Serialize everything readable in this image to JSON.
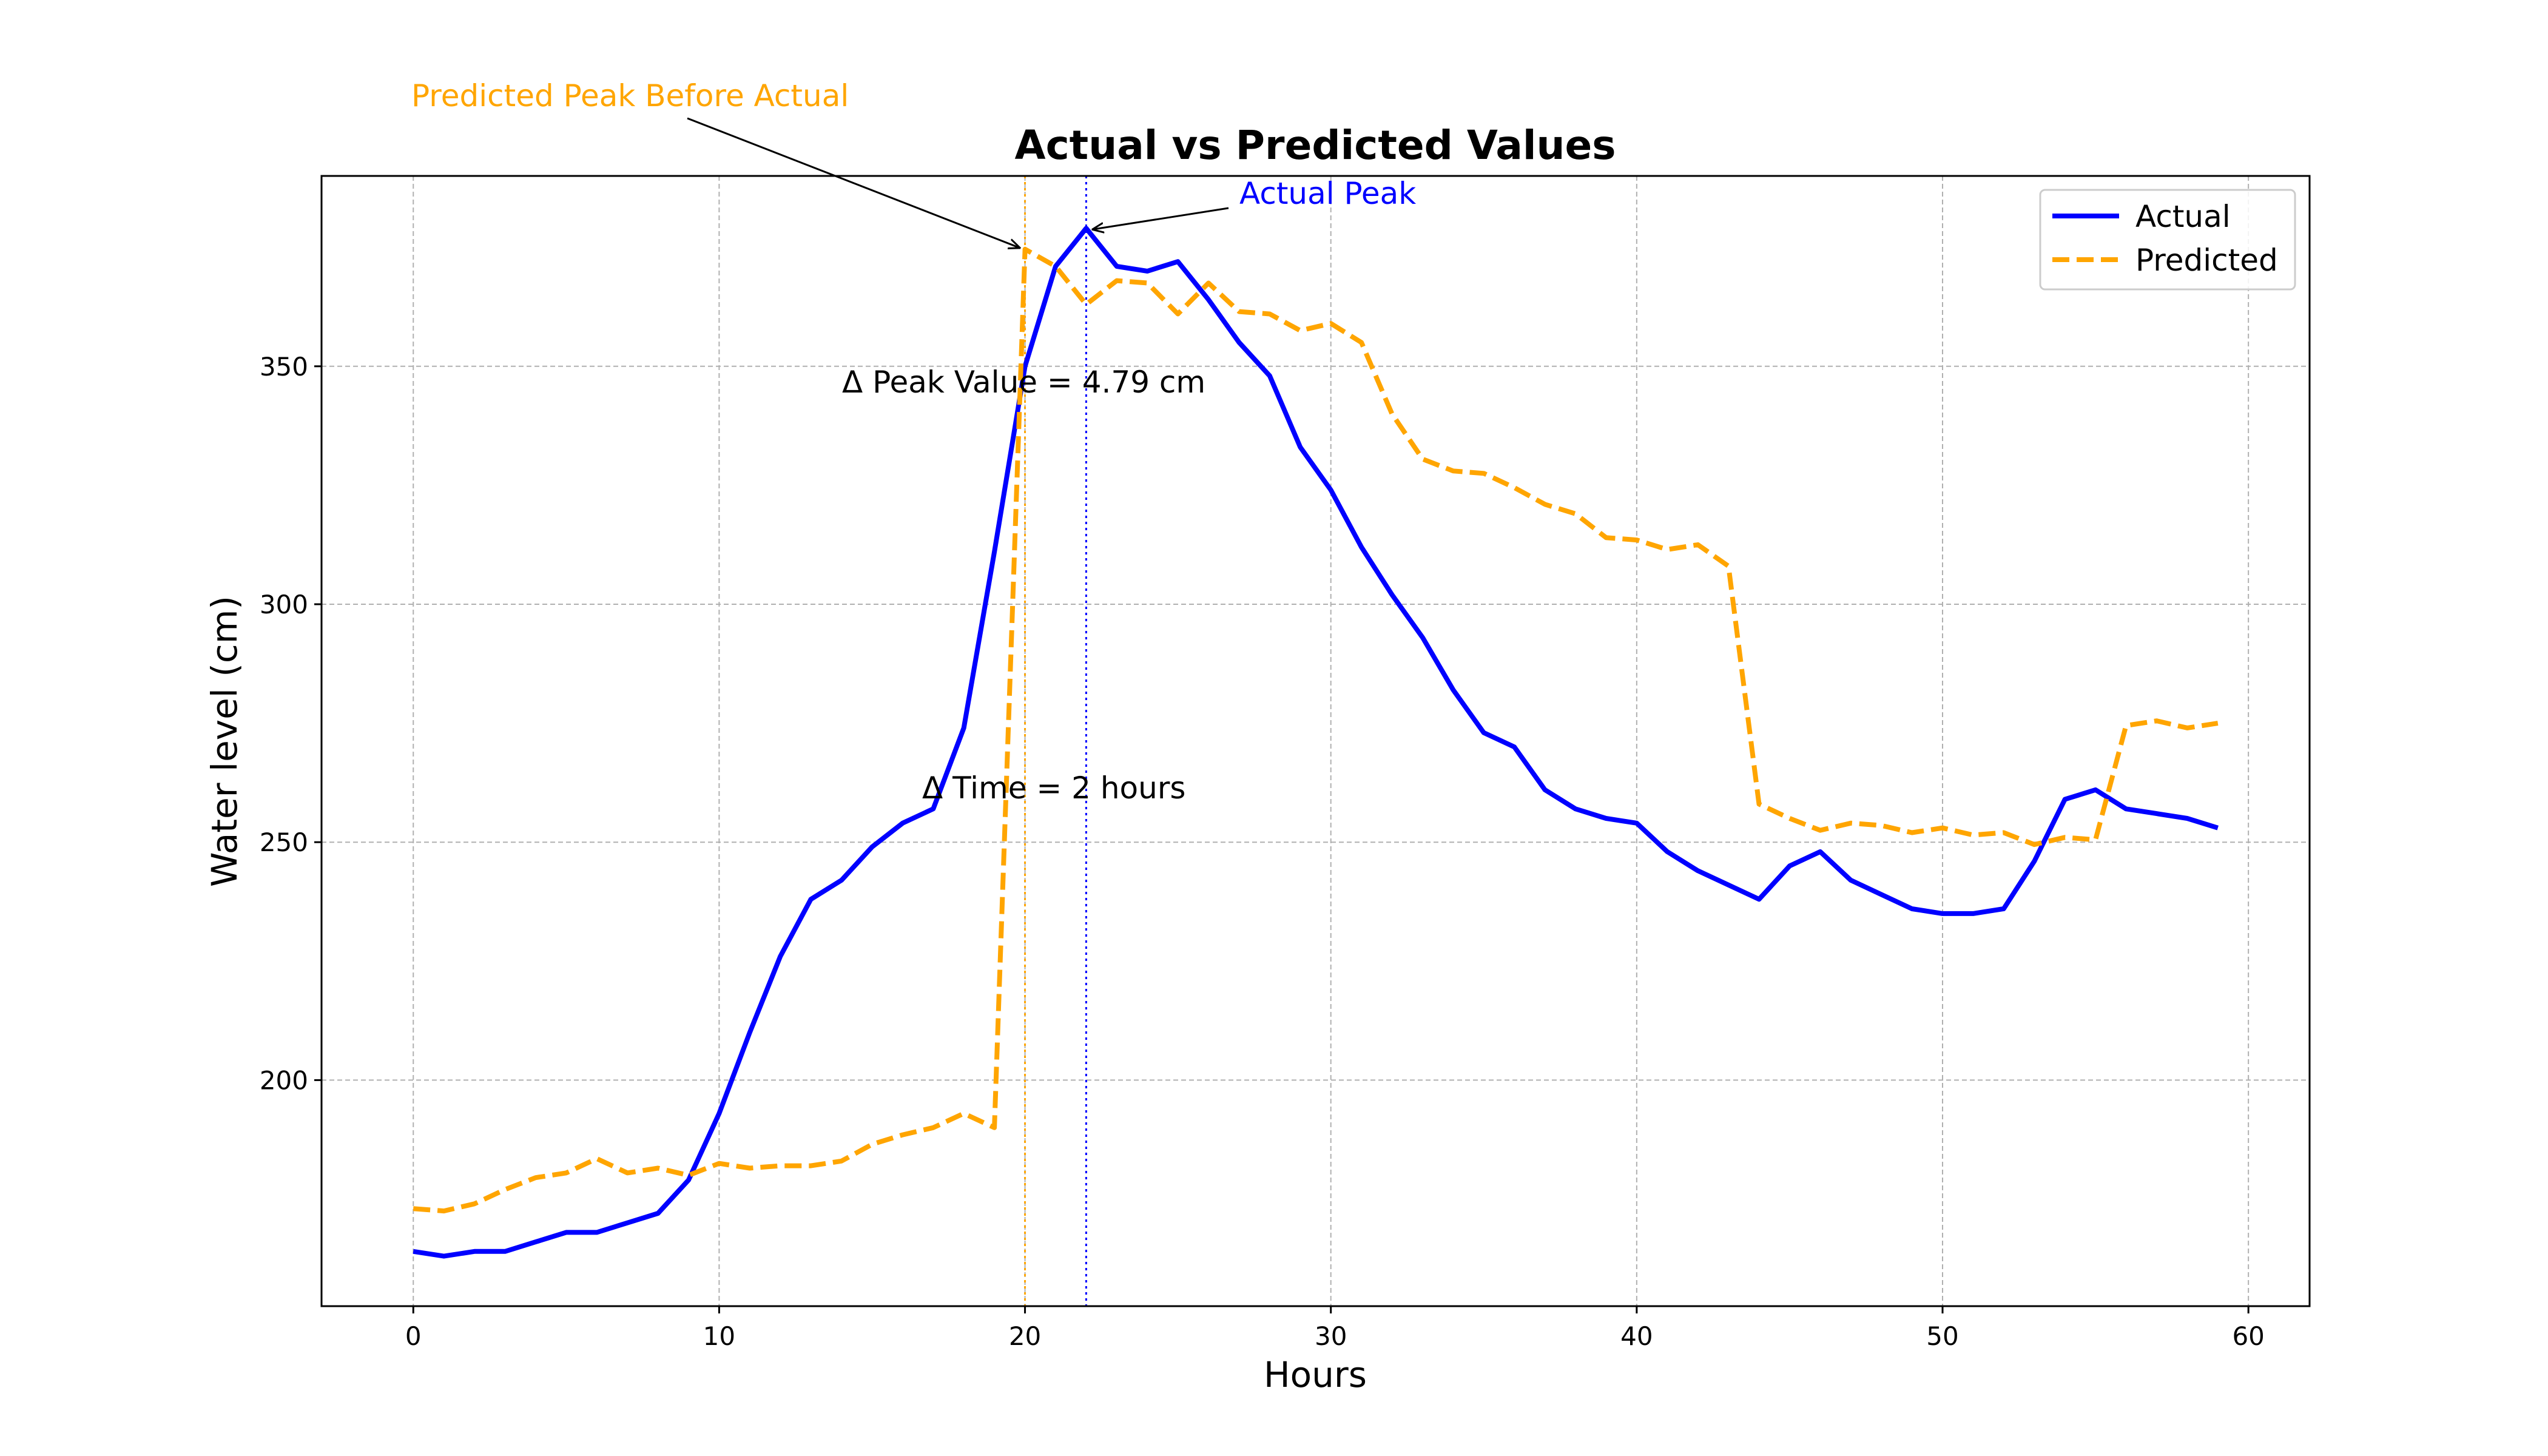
{
  "chart_data": {
    "type": "line",
    "title": "Actual vs Predicted Values",
    "xlabel": "Hours",
    "ylabel": "Water level (cm)",
    "xlim": [
      -3,
      62
    ],
    "ylim": [
      152.5,
      390
    ],
    "xticks": [
      0,
      10,
      20,
      30,
      40,
      50,
      60
    ],
    "yticks": [
      200,
      250,
      300,
      350
    ],
    "grid": true,
    "legend_position": "top-right",
    "x": [
      0,
      1,
      2,
      3,
      4,
      5,
      6,
      7,
      8,
      9,
      10,
      11,
      12,
      13,
      14,
      15,
      16,
      17,
      18,
      19,
      20,
      21,
      22,
      23,
      24,
      25,
      26,
      27,
      28,
      29,
      30,
      31,
      32,
      33,
      34,
      35,
      36,
      37,
      38,
      39,
      40,
      41,
      42,
      43,
      44,
      45,
      46,
      47,
      48,
      49,
      50,
      51,
      52,
      53,
      54,
      55,
      56,
      57,
      58,
      59
    ],
    "series": [
      {
        "name": "Actual",
        "color": "#0000ff",
        "style": "solid",
        "values": [
          164,
          163,
          164,
          164,
          166,
          168,
          168,
          170,
          172,
          179,
          193,
          210,
          226,
          238,
          242,
          249,
          254,
          257,
          274,
          311,
          350,
          371,
          379,
          371,
          370,
          372,
          364,
          355,
          348,
          333,
          324,
          312,
          302,
          293,
          282,
          273,
          270,
          261,
          257,
          255,
          254,
          248,
          244,
          241,
          238,
          245,
          248,
          242,
          239,
          236,
          235,
          235,
          236,
          246,
          259,
          261,
          257,
          256,
          255,
          253
        ]
      },
      {
        "name": "Predicted",
        "color": "#ffa500",
        "style": "dashed",
        "values": [
          173,
          172.5,
          174,
          177,
          179.5,
          180.5,
          183.5,
          180.5,
          181.5,
          180,
          182.5,
          181.5,
          182,
          182,
          183,
          186.5,
          188.5,
          190,
          193,
          190,
          374.6,
          371,
          363,
          368,
          367.5,
          361,
          367.5,
          361.5,
          361,
          357.5,
          359,
          355,
          340,
          330.5,
          328,
          327.5,
          324.5,
          321,
          319,
          314,
          313.5,
          311.5,
          312.5,
          308,
          258,
          255,
          252.5,
          254,
          253.5,
          252,
          253,
          251.5,
          252,
          249.5,
          251,
          250.5,
          274.5,
          275.5,
          274,
          275
        ]
      }
    ],
    "annotations": {
      "predicted_peak": {
        "text": "Predicted Peak Before Actual",
        "color": "#ffa500",
        "x": 20,
        "y": 374.6
      },
      "actual_peak": {
        "text": "Actual Peak",
        "color": "#0000ff",
        "x": 22,
        "y": 379
      },
      "delta_peak": {
        "text": "Δ Peak Value = 4.79 cm",
        "color": "#000000"
      },
      "delta_time": {
        "text": "Δ Time = 2 hours",
        "color": "#000000"
      }
    },
    "vlines": [
      {
        "x": 20,
        "color": "#ffa500"
      },
      {
        "x": 22,
        "color": "#0000ff"
      }
    ]
  }
}
